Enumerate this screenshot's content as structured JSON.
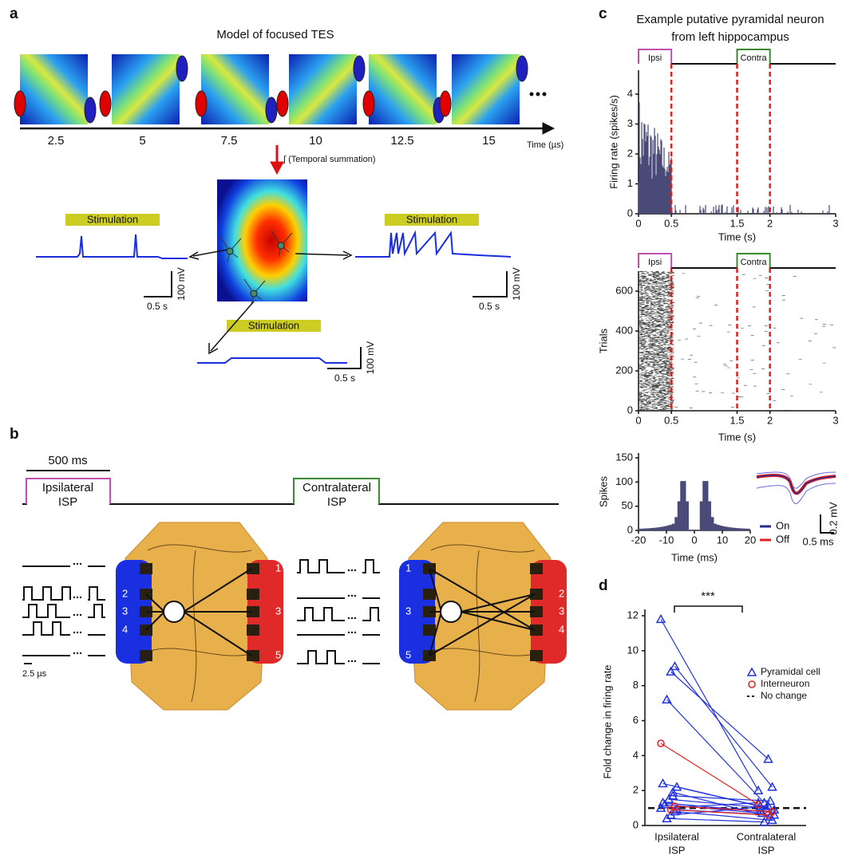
{
  "panel_a": {
    "label": "a",
    "title": "Model of focused TES",
    "time_ticks": [
      2.5,
      5,
      7.5,
      10,
      12.5,
      15
    ],
    "time_axis_label": "Time (µs)",
    "summation_label": "∫ (Temporal summation)",
    "stimulation_labels": [
      "Stimulation",
      "Stimulation",
      "Stimulation"
    ],
    "scale_bars": [
      {
        "voltage": "100 mV",
        "time": "0.5 s"
      },
      {
        "voltage": "100 mV",
        "time": "0.5 s"
      },
      {
        "voltage": "100 mV",
        "time": "0.5 s"
      }
    ]
  },
  "panel_b": {
    "label": "b",
    "duration_label": "500 ms",
    "ipsilateral": [
      "Ipsilateral",
      "ISP"
    ],
    "contralateral": [
      "Contralateral",
      "ISP"
    ],
    "left_head": {
      "blue_electrodes": [
        "2",
        "3",
        "4"
      ],
      "red_electrodes": [
        "1",
        "3",
        "5"
      ]
    },
    "right_head": {
      "blue_electrodes": [
        "1",
        "3",
        "5"
      ],
      "red_electrodes": [
        "2",
        "3",
        "4"
      ]
    },
    "pulse_scale": "2.5 µs"
  },
  "panel_c": {
    "label": "c",
    "title": [
      "Example putative pyramidal neuron",
      "from left hippocampus"
    ],
    "epochs": [
      "Ipsi",
      "Contra"
    ],
    "firing_rate": {
      "ylabel": "Firing rate (spikes/s)",
      "xlabel": "Time (s)",
      "xlim": [
        0,
        3
      ],
      "xticks": [
        0,
        0.5,
        1.5,
        2,
        3
      ],
      "ylim": [
        0,
        4.8
      ],
      "yticks": [
        0,
        1,
        2,
        3,
        4
      ]
    },
    "raster": {
      "ylabel": "Trials",
      "xlabel": "Time (s)",
      "xlim": [
        0,
        3
      ],
      "xticks": [
        0,
        0.5,
        1.5,
        2,
        3
      ],
      "ylim": [
        0,
        700
      ],
      "yticks": [
        0,
        200,
        400,
        600
      ]
    },
    "autocorrelogram": {
      "ylabel": "Spikes",
      "xlabel": "Time (ms)",
      "xlim": [
        -20,
        20
      ],
      "xticks": [
        -20,
        -10,
        0,
        10,
        20
      ],
      "ylim": [
        0,
        160
      ],
      "yticks": [
        0,
        50,
        100,
        150
      ]
    },
    "waveform": {
      "legend": [
        "On",
        "Off"
      ],
      "voltage_scale": "0.2 mV",
      "time_scale": "0.5 ms"
    }
  },
  "panel_d": {
    "label": "d",
    "type": "paired",
    "ylabel": "Fold change in firing rate",
    "categories": [
      [
        "Ipsilateral",
        "ISP"
      ],
      [
        "Contralateral",
        "ISP"
      ]
    ],
    "significance": "***",
    "ylim": [
      0,
      12
    ],
    "yticks": [
      0,
      2,
      4,
      6,
      8,
      10,
      12
    ],
    "no_change": {
      "name": "No change",
      "value": 1
    },
    "series": [
      {
        "name": "Pyramidal cell",
        "color": "#2233dd",
        "ipsi": [
          11.8,
          9.1,
          8.8,
          7.2,
          2.4,
          2.2,
          1.9,
          1.5,
          1.2,
          1.0,
          0.8,
          0.6,
          0.4,
          1.3,
          0.9,
          1.7
        ],
        "contra": [
          2.0,
          2.2,
          3.8,
          1.3,
          1.1,
          0.9,
          0.5,
          1.0,
          0.7,
          1.3,
          0.3,
          1.1,
          0.2,
          0.8,
          0.6,
          1.4
        ]
      },
      {
        "name": "Interneuron",
        "color": "#e02020",
        "ipsi": [
          4.7,
          1.1,
          0.9
        ],
        "contra": [
          1.2,
          0.8,
          0.6
        ]
      }
    ]
  }
}
